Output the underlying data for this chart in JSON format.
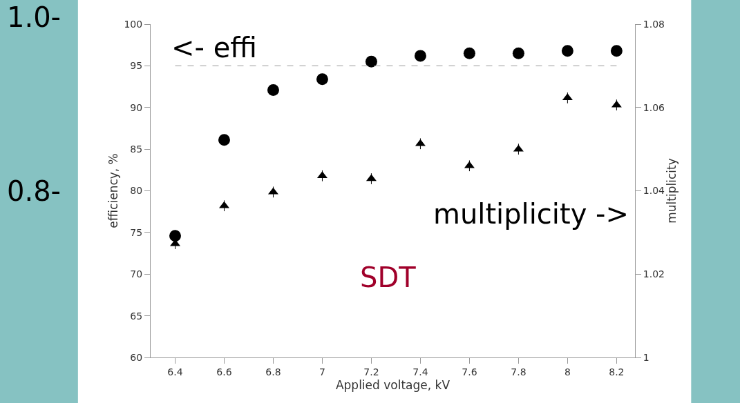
{
  "chart_data": {
    "type": "scatter",
    "xlabel": "Applied voltage, kV",
    "ylabel": "efficiency, %",
    "y2label": "multiplicity",
    "x": [
      6.4,
      6.6,
      6.8,
      7.0,
      7.2,
      7.4,
      7.6,
      7.8,
      8.0,
      8.2
    ],
    "series": [
      {
        "color": "#000000",
        "marker": "circle",
        "values": [
          74.6,
          86.1,
          92.1,
          93.4,
          95.5,
          96.2,
          96.5,
          96.5,
          96.8,
          96.8
        ]
      },
      {
        "color": "#000000",
        "marker": "triangle",
        "axis": "y2",
        "values": [
          1.0273,
          1.0364,
          1.0397,
          1.0436,
          1.0429,
          1.0513,
          1.046,
          1.05,
          1.0623,
          1.0606
        ],
        "errors": [
          0.0013,
          0.0013,
          0.0013,
          0.0013,
          0.0013,
          0.0013,
          0.0013,
          0.0013,
          0.0013,
          0.0013
        ]
      }
    ],
    "xlim": [
      6.3,
      8.275
    ],
    "xticks": [
      6.4,
      6.6,
      6.8,
      7,
      7.2,
      7.4,
      7.6,
      7.8,
      8,
      8.2
    ],
    "ylim": [
      60,
      100
    ],
    "yticks": [
      60,
      65,
      70,
      75,
      80,
      85,
      90,
      95,
      100
    ],
    "y2lim": [
      1,
      1.08
    ],
    "y2ticks": [
      1,
      1.02,
      1.04,
      1.06,
      1.08
    ],
    "ref_lines": [
      {
        "axis": "y",
        "value": 95,
        "color": "#999999",
        "line_style": "dashed"
      }
    ],
    "annotations": [
      "<- effi",
      "multiplicity ->",
      "SDT",
      "1.0-",
      "0.8-",
      "1.04"
    ]
  }
}
